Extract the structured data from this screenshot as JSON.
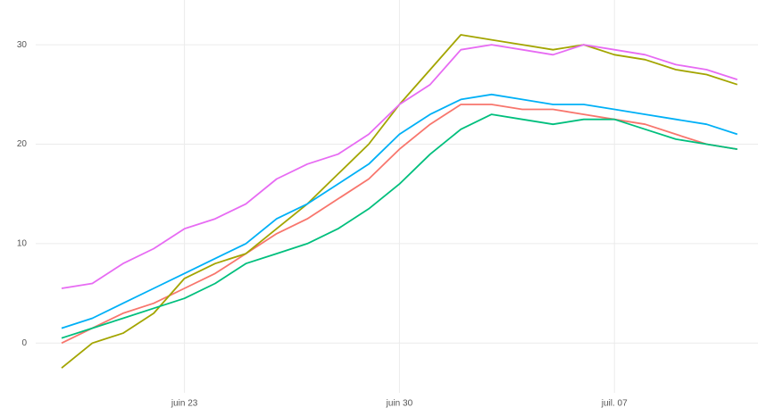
{
  "chart_data": {
    "type": "line",
    "x": [
      "juin 19",
      "juin 20",
      "juin 21",
      "juin 22",
      "juin 23",
      "juin 24",
      "juin 25",
      "juin 26",
      "juin 27",
      "juin 28",
      "juin 29",
      "juin 30",
      "juil. 01",
      "juil. 02",
      "juil. 03",
      "juil. 04",
      "juil. 05",
      "juil. 06",
      "juil. 07",
      "juil. 08",
      "juil. 09",
      "juil. 10",
      "juil. 11"
    ],
    "series": [
      {
        "color": "#F8766D",
        "values": [
          0,
          1.5,
          3,
          4,
          5.5,
          7,
          9,
          11,
          12.5,
          14.5,
          16.5,
          19.5,
          22,
          24,
          24,
          23.5,
          23.5,
          23,
          22.5,
          22,
          21,
          20,
          19.5
        ]
      },
      {
        "color": "#A3A500",
        "values": [
          -2.5,
          0,
          1,
          3,
          6.5,
          8,
          9,
          11.5,
          14,
          17,
          20,
          24,
          27.5,
          31,
          30.5,
          30,
          29.5,
          30,
          29,
          28.5,
          27.5,
          27,
          26
        ]
      },
      {
        "color": "#00BF7D",
        "values": [
          0.5,
          1.5,
          2.5,
          3.5,
          4.5,
          6,
          8,
          9,
          10,
          11.5,
          13.5,
          16,
          19,
          21.5,
          23,
          22.5,
          22,
          22.5,
          22.5,
          21.5,
          20.5,
          20,
          19.5
        ]
      },
      {
        "color": "#00B0F6",
        "values": [
          1.5,
          2.5,
          4,
          5.5,
          7,
          8.5,
          10,
          12.5,
          14,
          16,
          18,
          21,
          23,
          24.5,
          25,
          24.5,
          24,
          24,
          23.5,
          23,
          22.5,
          22,
          21
        ]
      },
      {
        "color": "#E76BF3",
        "values": [
          5.5,
          6,
          8,
          9.5,
          11.5,
          12.5,
          14,
          16.5,
          18,
          19,
          21,
          24,
          26,
          29.5,
          30,
          29.5,
          29,
          30,
          29.5,
          29,
          28,
          27.5,
          26.5
        ]
      }
    ],
    "xticks": [
      "juin 23",
      "juin 30",
      "juil. 07"
    ],
    "ylim": [
      -5,
      34.5
    ],
    "yticks": [
      0,
      10,
      20,
      30
    ],
    "grid": true
  }
}
